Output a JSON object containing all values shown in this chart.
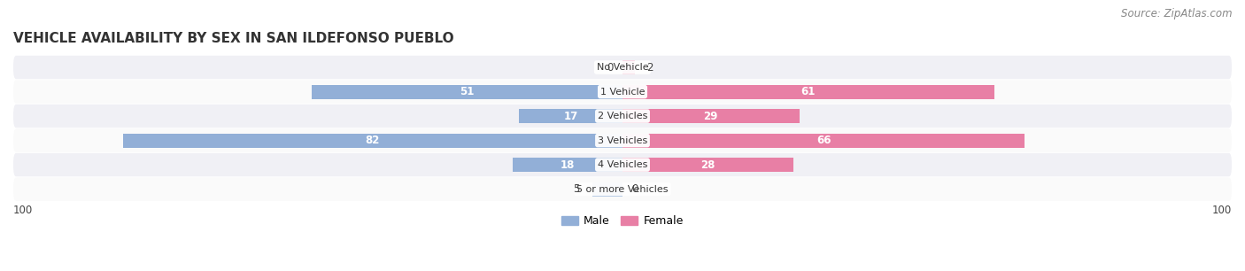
{
  "title": "VEHICLE AVAILABILITY BY SEX IN SAN ILDEFONSO PUEBLO",
  "source": "Source: ZipAtlas.com",
  "categories": [
    "No Vehicle",
    "1 Vehicle",
    "2 Vehicles",
    "3 Vehicles",
    "4 Vehicles",
    "5 or more Vehicles"
  ],
  "male_values": [
    0,
    51,
    17,
    82,
    18,
    5
  ],
  "female_values": [
    2,
    61,
    29,
    66,
    28,
    0
  ],
  "male_color": "#92afd7",
  "female_color": "#e87fa5",
  "male_label": "Male",
  "female_label": "Female",
  "xlim": [
    -100,
    100
  ],
  "bar_height": 0.58,
  "bg_color": "#ffffff",
  "row_bg_even": "#f0f0f5",
  "row_bg_odd": "#fafafa",
  "inside_label_threshold": 15,
  "axis_label": "100",
  "title_fontsize": 11,
  "source_fontsize": 8.5,
  "category_fontsize": 8,
  "value_fontsize": 8.5
}
